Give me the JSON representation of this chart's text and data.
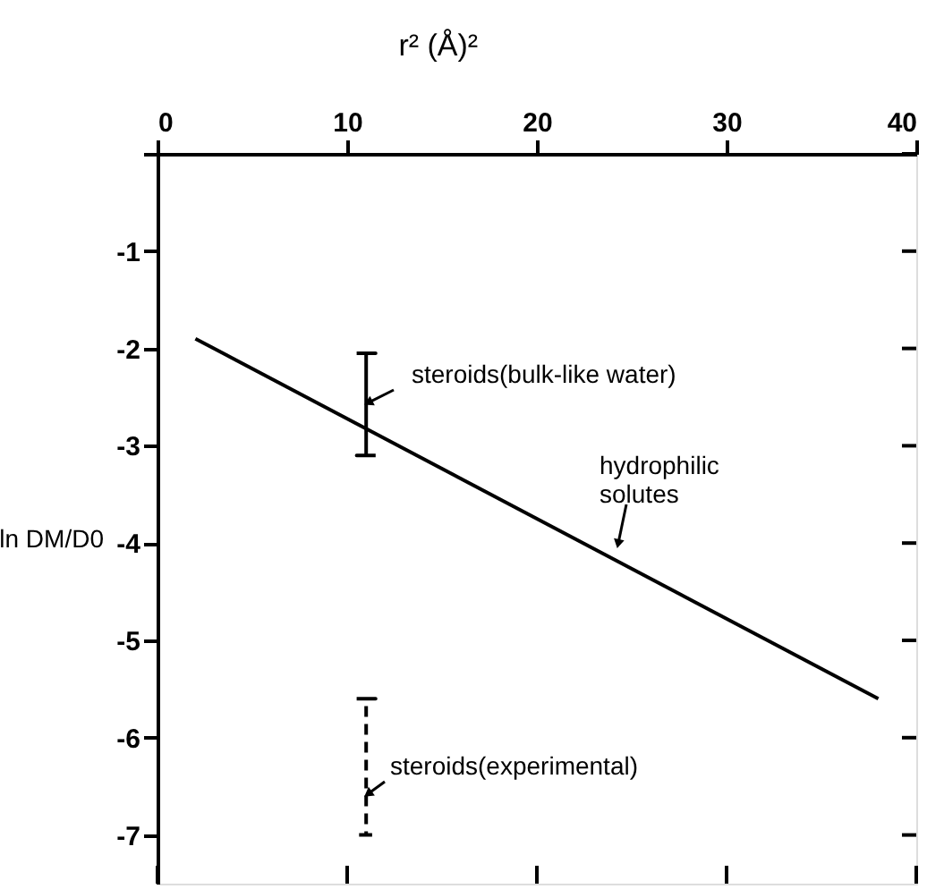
{
  "chart_data": {
    "type": "line",
    "xlabel": "r² (Å)²",
    "ylabel": "ln DM/D0",
    "xlim": [
      0,
      40
    ],
    "xticks": [
      0,
      10,
      20,
      30,
      40
    ],
    "ylim": [
      -7.5,
      0
    ],
    "yticks": [
      {
        "value": 0,
        "label": null
      },
      {
        "value": -1,
        "label": "-1"
      },
      {
        "value": -2,
        "label": "-2"
      },
      {
        "value": -3,
        "label": "-3"
      },
      {
        "value": -4,
        "label": "-4"
      },
      {
        "value": -5,
        "label": "-5"
      },
      {
        "value": -6,
        "label": "-6"
      },
      {
        "value": -7,
        "label": "-7"
      }
    ],
    "grid": false,
    "series": [
      {
        "x": [
          2,
          38
        ],
        "values": [
          -1.9,
          -5.6
        ],
        "color": "#000000",
        "line_style": "solid"
      },
      {
        "x": [
          10.5,
          11.5,
          11,
          11,
          10.5,
          11.5
        ],
        "values": [
          -2.05,
          -2.05,
          -2.05,
          -3.1,
          -3.1,
          -3.1
        ],
        "color": "#000000",
        "line_style": "solid"
      },
      {
        "x": [
          10.5,
          11.5,
          11,
          11,
          10.5,
          11.5
        ],
        "values": [
          -5.6,
          -5.6,
          -5.6,
          -7.0,
          -7.0,
          -7.0
        ],
        "color": "#000000",
        "line_style": "dashed"
      }
    ],
    "annotations": [
      "steroids(bulk-like water)",
      "hydrophilic\nsolutes",
      "steroids(experimental)"
    ]
  }
}
